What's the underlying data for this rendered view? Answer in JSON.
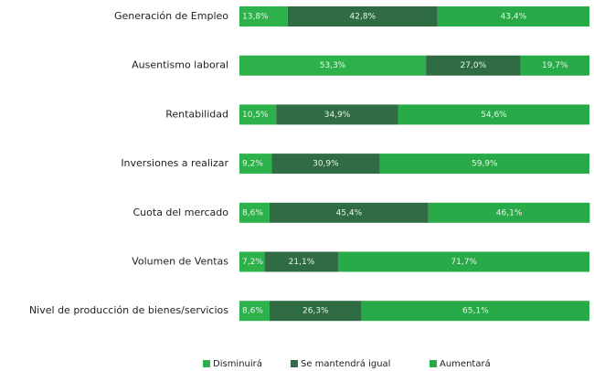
{
  "chart_data": {
    "type": "stacked_bar_horizontal",
    "categories": [
      "Generación de Empleo",
      "Ausentismo laboral",
      "Rentabilidad",
      "Inversiones a realizar",
      "Cuota del mercado",
      "Volumen de Ventas",
      "Nivel de producción de bienes/servicios"
    ],
    "xlim": [
      0,
      100
    ],
    "legend": "bottom",
    "series": [
      {
        "name": "Disminuirá",
        "color": "#2db24b",
        "values": [
          13.8,
          53.3,
          10.5,
          9.2,
          8.6,
          7.2,
          8.6
        ],
        "value_labels": [
          "13,8%",
          "53,3%",
          "10,5%",
          "9,2%",
          "8,6%",
          "7,2%",
          "8,6%"
        ]
      },
      {
        "name": "Se mantendrá igual",
        "color": "#2f6b43",
        "values": [
          42.8,
          27.0,
          34.9,
          30.9,
          45.4,
          21.1,
          26.3
        ],
        "value_labels": [
          "42,8%",
          "27,0%",
          "34,9%",
          "30,9%",
          "45,4%",
          "21,1%",
          "26,3%"
        ]
      },
      {
        "name": "Aumentará",
        "color": "#27aa47",
        "values": [
          43.4,
          19.7,
          54.6,
          59.9,
          46.1,
          71.7,
          65.1
        ],
        "value_labels": [
          "43,4%",
          "19,7%",
          "54,6%",
          "59,9%",
          "46,1%",
          "71,7%",
          "65,1%"
        ]
      }
    ]
  }
}
